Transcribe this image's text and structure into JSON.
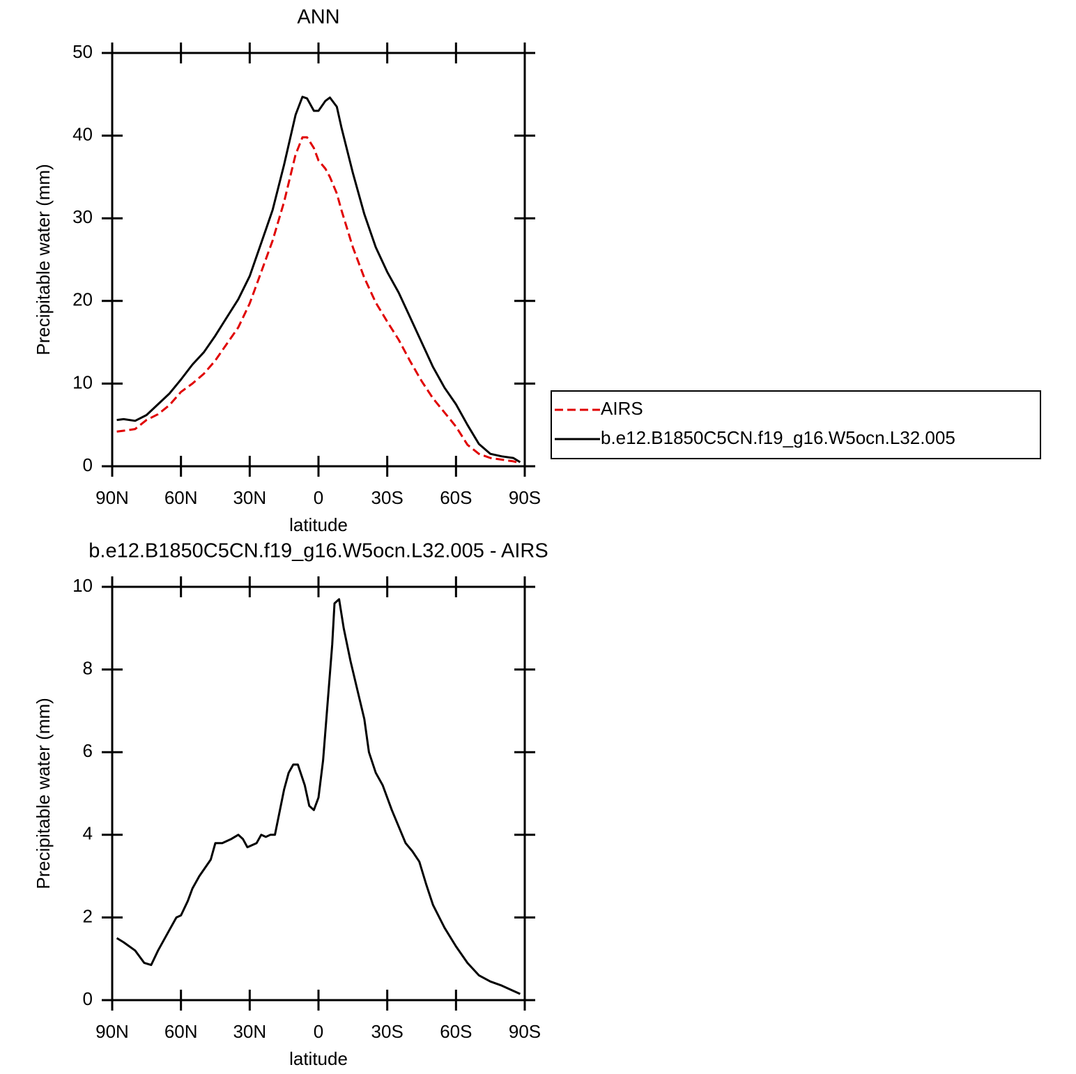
{
  "chart_data": [
    {
      "type": "line",
      "title": "ANN",
      "xlabel": "latitude",
      "ylabel": "Precipitable water (mm)",
      "x": [
        88,
        85,
        80,
        75,
        70,
        65,
        60,
        55,
        50,
        45,
        40,
        35,
        30,
        25,
        20,
        15,
        10,
        7,
        5,
        2,
        0,
        -3,
        -5,
        -8,
        -10,
        -15,
        -20,
        -25,
        -30,
        -35,
        -40,
        -45,
        -50,
        -55,
        -60,
        -65,
        -70,
        -75,
        -80,
        -85,
        -88
      ],
      "series": [
        {
          "name": "AIRS",
          "color": "#e00000",
          "dash": true,
          "values": [
            4.2,
            4.3,
            4.5,
            5.6,
            6.3,
            7.4,
            9.0,
            10.0,
            11.2,
            12.8,
            14.8,
            16.8,
            19.7,
            23.5,
            27.3,
            32.0,
            37.7,
            39.8,
            39.8,
            38.5,
            37.0,
            36.0,
            35.0,
            33.0,
            31.0,
            26.5,
            22.8,
            19.8,
            17.5,
            15.3,
            12.7,
            10.3,
            8.2,
            6.5,
            4.8,
            2.6,
            1.5,
            1.0,
            0.8,
            0.6,
            0.4
          ]
        },
        {
          "name": "b.e12.B1850C5CN.f19_g16.W5ocn.L32.005",
          "color": "#000000",
          "dash": false,
          "values": [
            5.6,
            5.7,
            5.5,
            6.2,
            7.5,
            8.8,
            10.5,
            12.3,
            13.8,
            15.8,
            18.0,
            20.2,
            23.0,
            27.0,
            31.0,
            36.5,
            42.5,
            44.7,
            44.5,
            43.0,
            43.0,
            44.2,
            44.6,
            43.5,
            41.0,
            35.5,
            30.5,
            26.5,
            23.5,
            21.0,
            18.0,
            15.0,
            12.0,
            9.5,
            7.5,
            5.0,
            2.7,
            1.5,
            1.2,
            1.0,
            0.5
          ]
        }
      ],
      "xlim": [
        90,
        -90
      ],
      "xticks": [
        {
          "value": 90,
          "label": "90N"
        },
        {
          "value": 60,
          "label": "60N"
        },
        {
          "value": 30,
          "label": "30N"
        },
        0,
        {
          "value": -30,
          "label": "30S"
        },
        {
          "value": -60,
          "label": "60S"
        },
        {
          "value": -90,
          "label": "90S"
        }
      ],
      "ylim": [
        0,
        50
      ],
      "yticks": [
        0,
        10,
        20,
        30,
        40,
        50
      ],
      "legend": "right"
    },
    {
      "type": "line",
      "title": "b.e12.B1850C5CN.f19_g16.W5ocn.L32.005 - AIRS",
      "xlabel": "latitude",
      "ylabel": "Precipitable water (mm)",
      "x": [
        88,
        85,
        80,
        76,
        73,
        70,
        65,
        62,
        60,
        57,
        55,
        52,
        47,
        45,
        42,
        38,
        35,
        33,
        31,
        27,
        25,
        23,
        21,
        19,
        15,
        13,
        11,
        9,
        6,
        4,
        2,
        0,
        -2,
        -6,
        -7,
        -9,
        -11,
        -14,
        -17,
        -20,
        -22,
        -25,
        -28,
        -32,
        -35,
        -38,
        -41,
        -44,
        -47,
        -50,
        -55,
        -60,
        -65,
        -70,
        -75,
        -80,
        -84,
        -88
      ],
      "series": [
        {
          "name": null,
          "color": "#000000",
          "dash": false,
          "values": [
            1.5,
            1.4,
            1.2,
            0.9,
            0.85,
            1.2,
            1.7,
            2.0,
            2.05,
            2.4,
            2.7,
            3.0,
            3.4,
            3.8,
            3.8,
            3.9,
            4.0,
            3.9,
            3.7,
            3.8,
            4.0,
            3.95,
            4.0,
            4.0,
            5.1,
            5.5,
            5.7,
            5.7,
            5.2,
            4.7,
            4.6,
            4.9,
            5.8,
            8.6,
            9.6,
            9.7,
            9.0,
            8.2,
            7.5,
            6.8,
            6.0,
            5.5,
            5.2,
            4.6,
            4.2,
            3.8,
            3.6,
            3.35,
            2.8,
            2.3,
            1.75,
            1.3,
            0.9,
            0.6,
            0.45,
            0.35,
            0.25,
            0.15
          ]
        }
      ],
      "xlim": [
        90,
        -90
      ],
      "xticks": [
        {
          "value": 90,
          "label": "90N"
        },
        {
          "value": 60,
          "label": "60N"
        },
        {
          "value": 30,
          "label": "30N"
        },
        0,
        {
          "value": -30,
          "label": "30S"
        },
        {
          "value": -60,
          "label": "60S"
        },
        {
          "value": -90,
          "label": "90S"
        }
      ],
      "ylim": [
        0,
        10
      ],
      "yticks": [
        0,
        2,
        4,
        6,
        8,
        10
      ]
    }
  ]
}
